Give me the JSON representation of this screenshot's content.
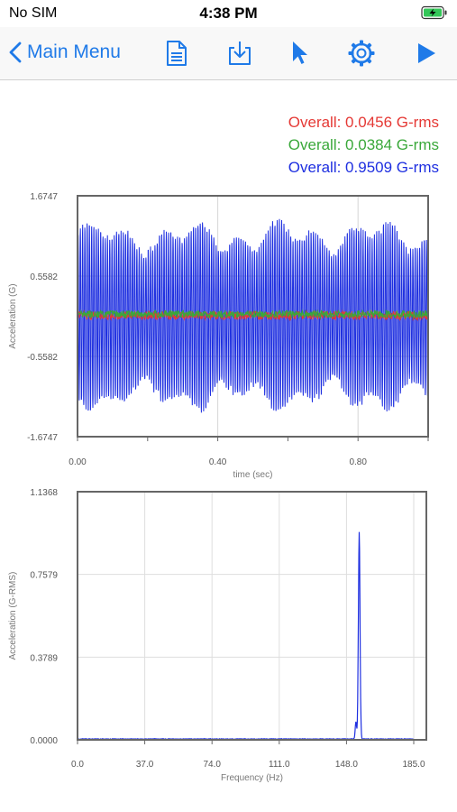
{
  "status_bar": {
    "carrier": "No SIM",
    "time": "4:38 PM",
    "battery_icon": "battery-charging-icon"
  },
  "nav": {
    "back_label": "Main Menu",
    "icons": [
      "chevron-left-icon",
      "document-icon",
      "download-icon",
      "cursor-icon",
      "gear-icon",
      "play-icon"
    ],
    "accent": "#1f7ae8"
  },
  "overall": [
    {
      "text": "Overall: 0.0456 G-rms",
      "color": "#e53935"
    },
    {
      "text": "Overall: 0.0384 G-rms",
      "color": "#3aa83a"
    },
    {
      "text": "Overall: 0.9509 G-rms",
      "color": "#1e2fe0"
    }
  ],
  "chart_data": [
    {
      "type": "line",
      "xlabel": "time (sec)",
      "ylabel": "Acceleration (G)",
      "x_ticks": [
        "0.00",
        "0.40",
        "0.80"
      ],
      "y_ticks": [
        "1.6747",
        "0.5582",
        "-0.5582",
        "-1.6747"
      ],
      "xlim": [
        0,
        1.0
      ],
      "ylim": [
        -1.6747,
        1.6747
      ],
      "grid": true,
      "series": [
        {
          "color": "#1e2fe0",
          "amplitude": 1.34,
          "cycles": 155
        },
        {
          "color": "#e53935",
          "amplitude": 0.06,
          "noise": true
        },
        {
          "color": "#3aa83a",
          "amplitude": 0.05,
          "noise": true
        }
      ]
    },
    {
      "type": "line",
      "xlabel": "Frequency (Hz)",
      "ylabel": "Acceleration (G-RMS)",
      "x_ticks": [
        "0.0",
        "37.0",
        "74.0",
        "111.0",
        "148.0",
        "185.0"
      ],
      "y_ticks": [
        "1.1368",
        "0.7579",
        "0.3789",
        "0.0000"
      ],
      "xlim": [
        0,
        185
      ],
      "ylim": [
        0,
        1.1368
      ],
      "grid": true,
      "series": [
        {
          "color": "#1e2fe0",
          "peak_frequency": 155,
          "peak_value": 0.95
        }
      ]
    }
  ]
}
